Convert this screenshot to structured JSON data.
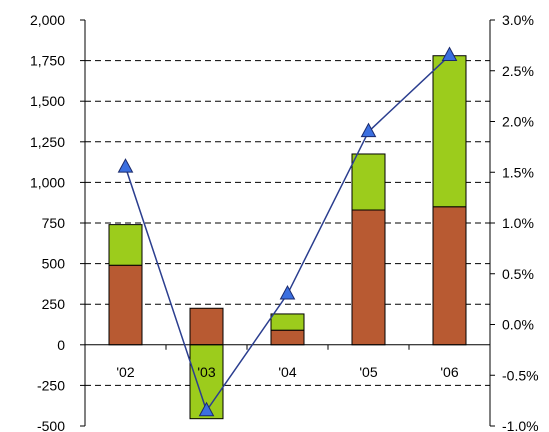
{
  "chart_data": {
    "type": "bar",
    "categories": [
      "'02",
      "'03",
      "'04",
      "'05",
      "'06"
    ],
    "series": [
      {
        "values": [
          490,
          225,
          90,
          830,
          850
        ],
        "color": "#b85a32"
      },
      {
        "values": [
          250,
          -455,
          100,
          345,
          930
        ],
        "color": "#9ccc1c"
      },
      {
        "type": "line",
        "axis": "right",
        "values": [
          1.55,
          -0.85,
          0.3,
          1.9,
          2.65
        ],
        "color": "#2b3e8f",
        "marker": "triangle",
        "marker_color": "#3b6fe0"
      }
    ],
    "ylim": [
      -500,
      2000
    ],
    "y_ticks": [
      "2,000",
      "1,750",
      "1,500",
      "1,250",
      "1,000",
      "750",
      "500",
      "250",
      "0",
      "-250",
      "-500"
    ],
    "y2lim": [
      -1.0,
      3.0
    ],
    "y2_ticks": [
      "3.0%",
      "2.5%",
      "2.0%",
      "1.5%",
      "1.0%",
      "0.5%",
      "0.0%",
      "-0.5%",
      "-1.0%"
    ],
    "grid": "dashed",
    "legend": "none"
  }
}
